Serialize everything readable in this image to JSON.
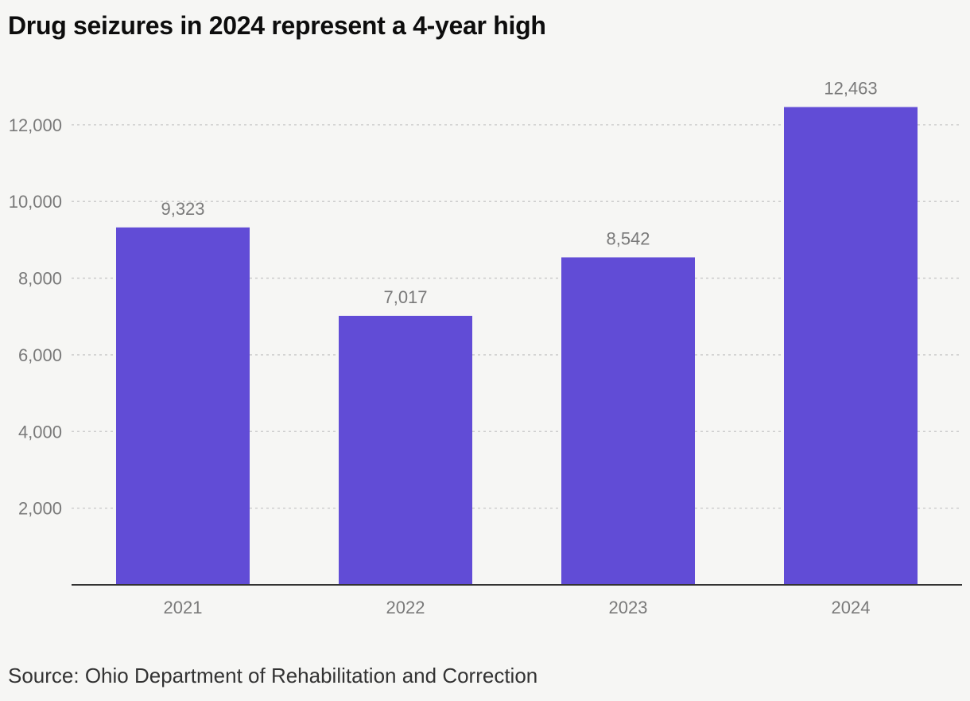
{
  "title": "Drug seizures in 2024 represent a 4-year high",
  "source": "Source: Ohio Department of Rehabilitation and Correction",
  "colors": {
    "bar": "#614cd6",
    "background": "#f6f6f4",
    "grid": "#c8c8c8",
    "axis": "#333333",
    "tick_label": "#7a7a7a",
    "data_label": "#7a7a7a"
  },
  "chart_data": {
    "type": "bar",
    "categories": [
      "2021",
      "2022",
      "2023",
      "2024"
    ],
    "values": [
      9323,
      7017,
      8542,
      12463
    ],
    "value_labels": [
      "9,323",
      "7,017",
      "8,542",
      "12,463"
    ],
    "y_ticks": [
      2000,
      4000,
      6000,
      8000,
      10000,
      12000
    ],
    "y_tick_labels": [
      "2,000",
      "4,000",
      "6,000",
      "8,000",
      "10,000",
      "12,000"
    ],
    "ylim": [
      0,
      12463
    ],
    "grid": true,
    "grid_style": "dotted",
    "legend": "none"
  }
}
